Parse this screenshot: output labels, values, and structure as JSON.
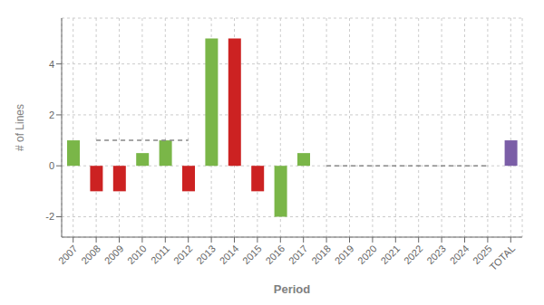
{
  "chart_data": {
    "type": "bar",
    "categories": [
      "2007",
      "2008",
      "2009",
      "2010",
      "2011",
      "2012",
      "2013",
      "2014",
      "2015",
      "2016",
      "2017",
      "2018",
      "2019",
      "2020",
      "2021",
      "2022",
      "2023",
      "2024",
      "2025",
      "TOTAL"
    ],
    "values": [
      1,
      -1,
      -1,
      0.5,
      1,
      -1,
      5,
      5,
      -1,
      -2,
      0.5,
      0,
      0,
      0,
      0,
      0,
      0,
      0,
      0,
      1
    ],
    "colors": [
      "#7ab648",
      "#cc2222",
      "#cc2222",
      "#7ab648",
      "#7ab648",
      "#cc2222",
      "#7ab648",
      "#cc2222",
      "#cc2222",
      "#7ab648",
      "#7ab648",
      "#7ab648",
      "#7ab648",
      "#7ab648",
      "#7ab648",
      "#7ab648",
      "#7ab648",
      "#7ab648",
      "#7ab648",
      "#7b5ea7"
    ],
    "xlabel": "Period",
    "ylabel": "# of Lines",
    "ylim": [
      -2.8,
      5.8
    ],
    "yticks": [
      -2,
      0,
      2,
      4
    ],
    "grid": true,
    "reference_lines": [
      {
        "y": 1,
        "from": "2008",
        "to": "2012"
      },
      {
        "y": 0,
        "from": "2018",
        "to": "2025"
      }
    ]
  }
}
